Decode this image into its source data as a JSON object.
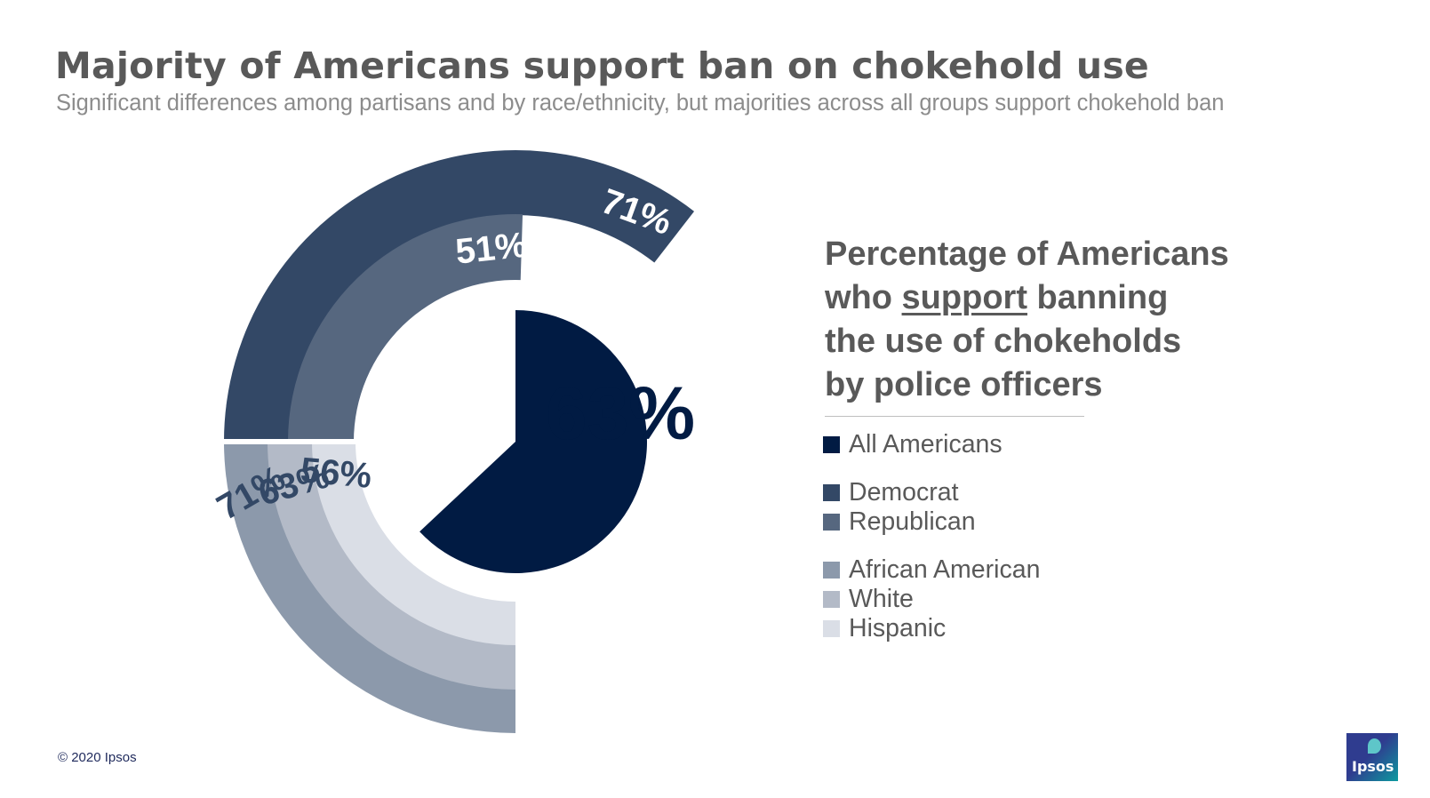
{
  "title": "Majority of Americans support ban on chokehold use",
  "subtitle": "Significant differences among partisans and by race/ethnicity, but majorities across all groups support chokehold ban",
  "panel": {
    "heading_line1": "Percentage of Americans",
    "heading_line2_pre": "who ",
    "heading_line2_u": "support",
    "heading_line2_post": " banning",
    "heading_line3": "the use of chokeholds",
    "heading_line4": "by police officers"
  },
  "colors": {
    "all_americans": "#011b43",
    "democrat": "#334866",
    "republican": "#56677f",
    "african_american": "#8c99ab",
    "white": "#b3bac7",
    "hispanic": "#dadee6",
    "label_light": "#ffffff",
    "label_dark": "#334866"
  },
  "chart_data": {
    "type": "pie",
    "unit": "%",
    "center": {
      "name": "All Americans",
      "value": 63,
      "label": "63%"
    },
    "series": [
      {
        "name": "Democrat",
        "value": 71,
        "label": "71%",
        "group": "party"
      },
      {
        "name": "Republican",
        "value": 51,
        "label": "51%",
        "group": "party"
      },
      {
        "name": "African American",
        "value": 71,
        "label": "71%",
        "group": "race"
      },
      {
        "name": "White",
        "value": 63,
        "label": "63%",
        "group": "race"
      },
      {
        "name": "Hispanic",
        "value": 56,
        "label": "56%",
        "group": "race"
      }
    ]
  },
  "legend": [
    {
      "label": "All Americans",
      "color": "#011b43"
    },
    {
      "label": "Democrat",
      "color": "#334866"
    },
    {
      "label": "Republican",
      "color": "#56677f"
    },
    {
      "label": "African American",
      "color": "#8c99ab"
    },
    {
      "label": "White",
      "color": "#b3bac7"
    },
    {
      "label": "Hispanic",
      "color": "#dadee6"
    }
  ],
  "footer": {
    "copyright": "© 2020 Ipsos",
    "logo_text": "Ipsos"
  }
}
